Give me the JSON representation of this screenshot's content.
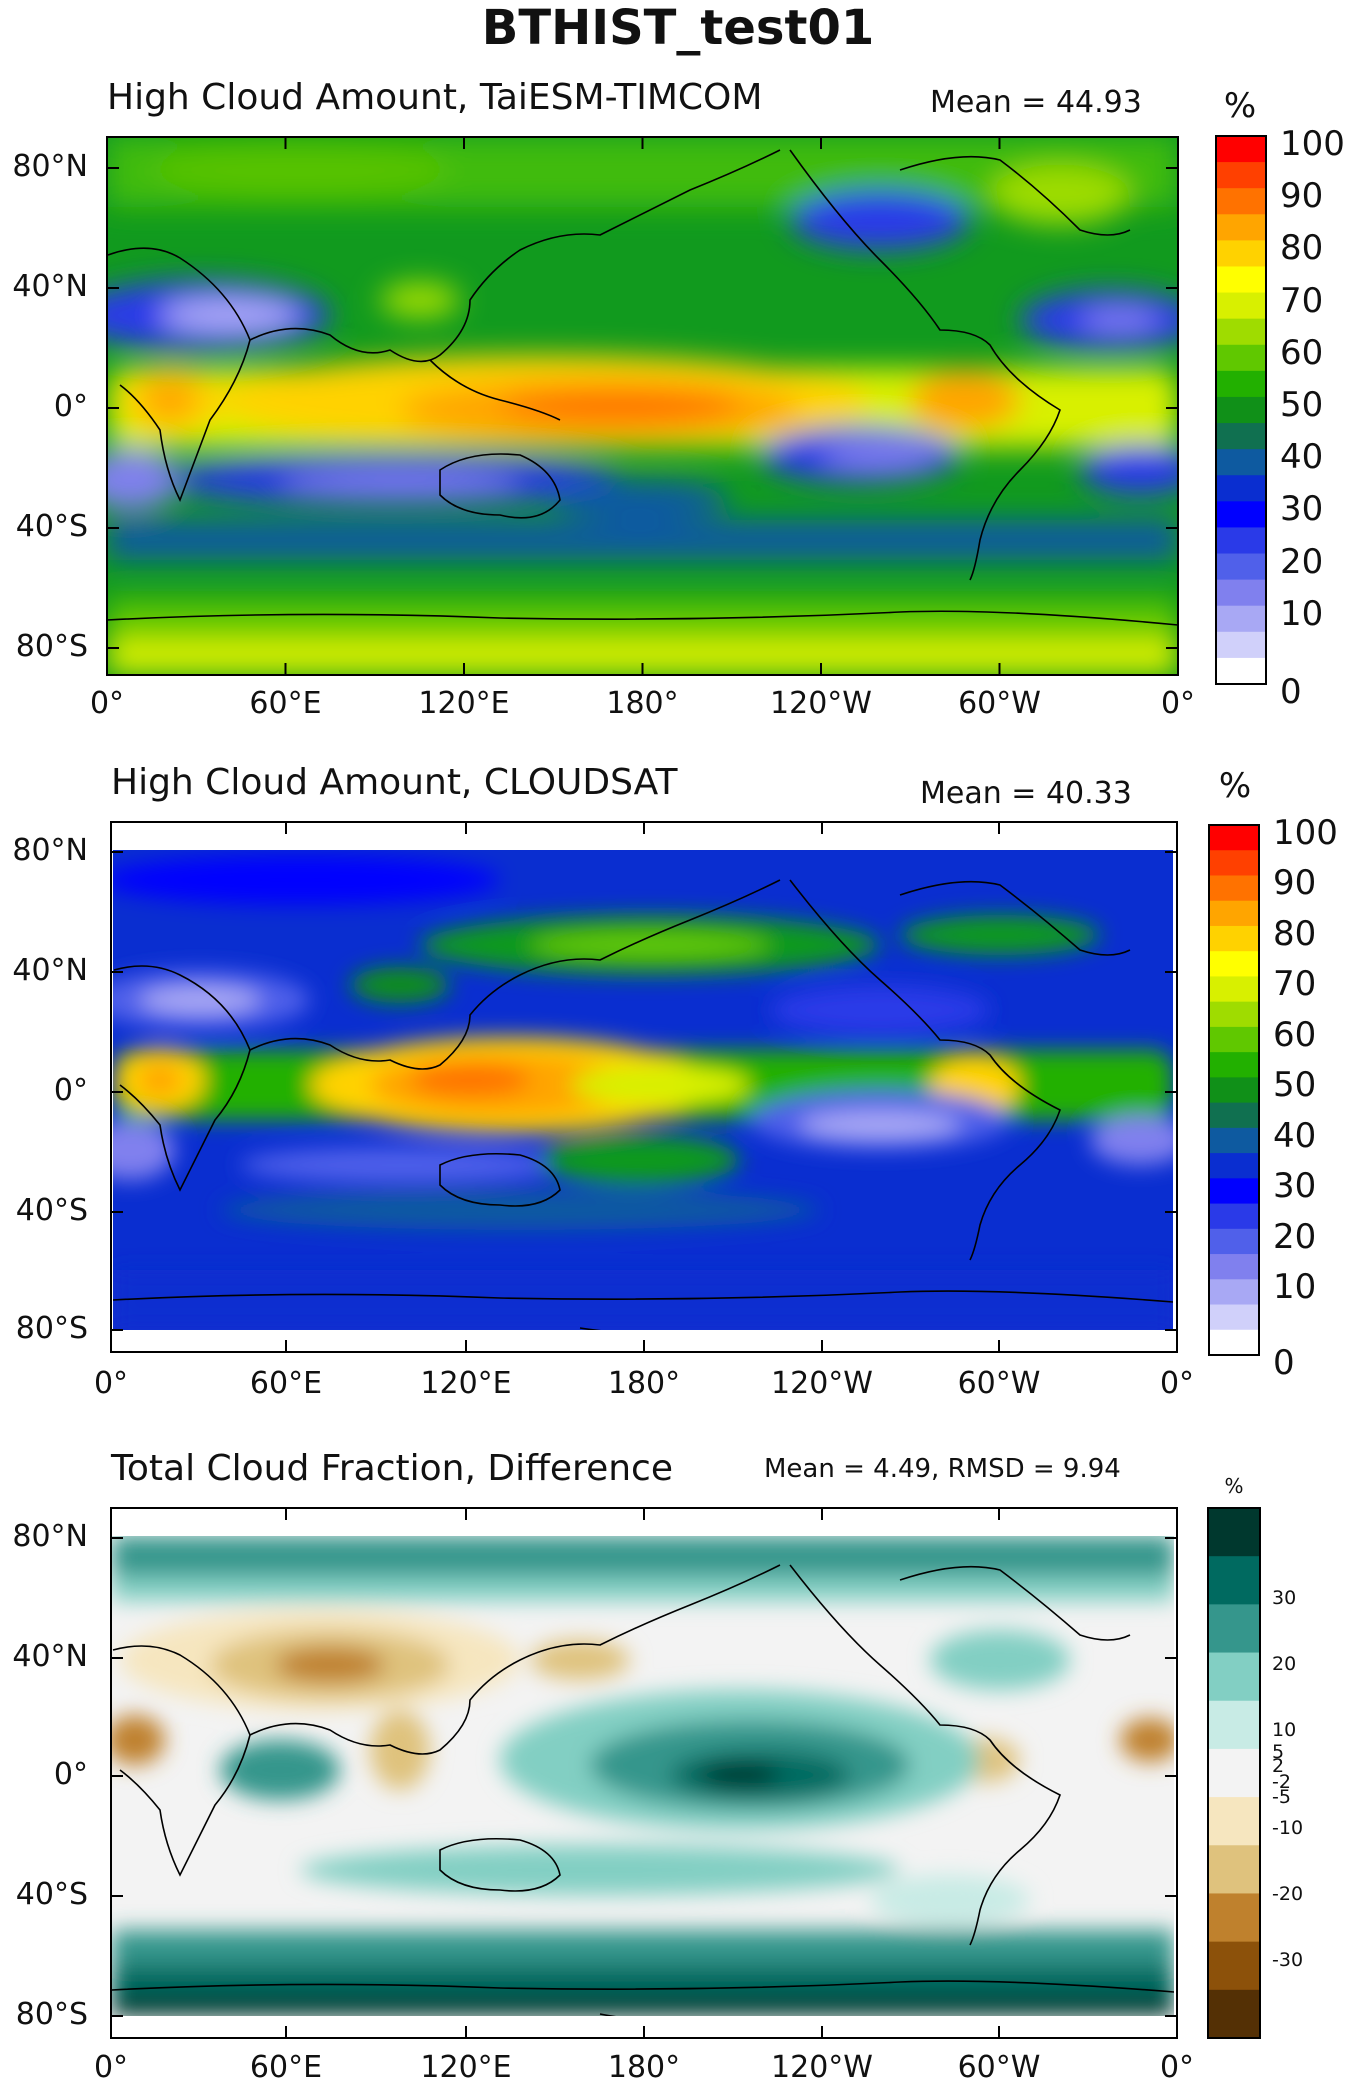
{
  "figure": {
    "title": "BTHIST_test01"
  },
  "panels": [
    {
      "id": "model",
      "title": "High Cloud Amount, TaiESM-TIMCOM",
      "stat": "Mean = 44.93",
      "unit": "%",
      "colorbar": {
        "labels": [
          "100",
          "90",
          "80",
          "70",
          "60",
          "50",
          "40",
          "30",
          "20",
          "10",
          "0"
        ],
        "colors": [
          "#ff0000",
          "#ff4000",
          "#ff7200",
          "#ffa500",
          "#ffd200",
          "#ffff00",
          "#d8f000",
          "#9fdc00",
          "#60c800",
          "#22b000",
          "#109018",
          "#107050",
          "#0e5aa0",
          "#0a2ed0",
          "#0000ff",
          "#2a3ae8",
          "#5060ea",
          "#8080ee",
          "#a8a8f4",
          "#d0d0fa",
          "#ffffff"
        ]
      }
    },
    {
      "id": "obs",
      "title": "High Cloud Amount, CLOUDSAT",
      "stat": "Mean = 40.33",
      "unit": "%",
      "colorbar": {
        "labels": [
          "100",
          "90",
          "80",
          "70",
          "60",
          "50",
          "40",
          "30",
          "20",
          "10",
          "0"
        ],
        "colors": [
          "#ff0000",
          "#ff4000",
          "#ff7200",
          "#ffa500",
          "#ffd200",
          "#ffff00",
          "#d8f000",
          "#9fdc00",
          "#60c800",
          "#22b000",
          "#109018",
          "#107050",
          "#0e5aa0",
          "#0a2ed0",
          "#0000ff",
          "#2a3ae8",
          "#5060ea",
          "#8080ee",
          "#a8a8f4",
          "#d0d0fa",
          "#ffffff"
        ]
      }
    },
    {
      "id": "diff",
      "title": "Total Cloud Fraction, Difference",
      "stat": "Mean = 4.49, RMSD = 9.94",
      "unit": "%",
      "colorbar": {
        "labels": [
          "30",
          "20",
          "10",
          "5",
          "2",
          "-2",
          "-5",
          "-10",
          "-20",
          "-30"
        ],
        "colors": [
          "#00382e",
          "#006a60",
          "#35968c",
          "#82cfc3",
          "#c8ebe5",
          "#f3f3f3",
          "#f6e6bf",
          "#dfc27d",
          "#bf812d",
          "#8c510a",
          "#543005"
        ]
      }
    }
  ],
  "axes": {
    "lat_ticks": [
      "80°N",
      "40°N",
      "0°",
      "40°S",
      "80°S"
    ],
    "lon_ticks": [
      "0°",
      "60°E",
      "120°E",
      "180°",
      "120°W",
      "60°W",
      "0°"
    ]
  }
}
